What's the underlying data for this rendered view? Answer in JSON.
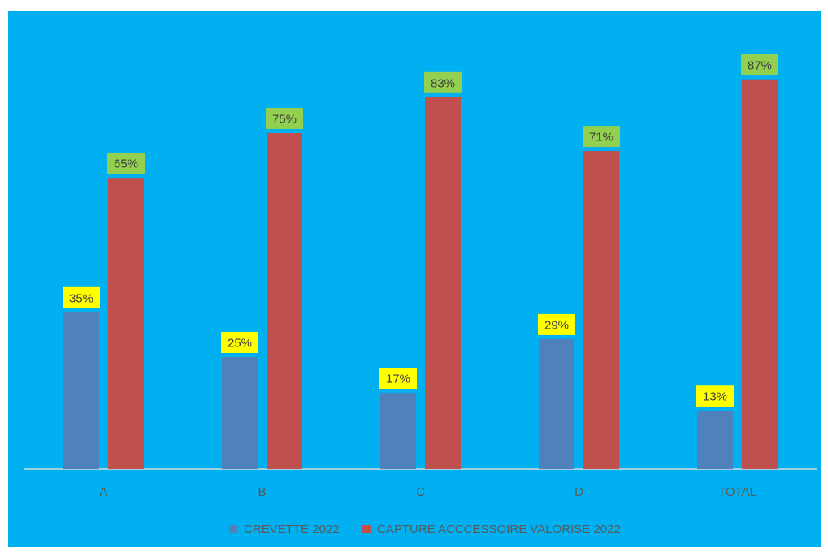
{
  "chart_data": {
    "type": "bar",
    "categories": [
      "A",
      "B",
      "C",
      "D",
      "TOTAL"
    ],
    "series": [
      {
        "name": "CREVETTE 2022",
        "values": [
          35,
          25,
          17,
          29,
          13
        ],
        "labels": [
          "35%",
          "25%",
          "17%",
          "29%",
          "13%"
        ],
        "color": "#4f81bd",
        "label_bg": "#ffff00"
      },
      {
        "name": "CAPTURE ACCCESSOIRE VALORISE 2022",
        "values": [
          65,
          75,
          83,
          71,
          87
        ],
        "labels": [
          "65%",
          "75%",
          "83%",
          "71%",
          "87%"
        ],
        "color": "#c0504d",
        "label_bg": "#92d050"
      }
    ],
    "ylim": [
      0,
      100
    ],
    "grid": false,
    "legend_position": "bottom",
    "background": "#00b0f0"
  }
}
